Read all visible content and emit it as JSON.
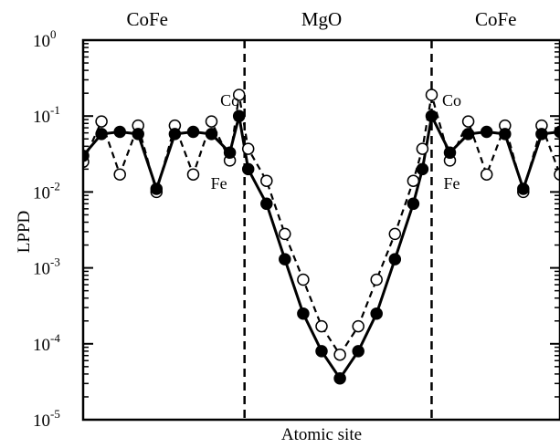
{
  "chart_data": {
    "type": "line",
    "title": "",
    "xlabel": "Atomic site",
    "ylabel": "LPPD",
    "y_scale": "log",
    "ylim": [
      1e-05,
      1
    ],
    "xlim": [
      0,
      26
    ],
    "grid": false,
    "y_ticks": [
      {
        "value": 1,
        "base": "10",
        "exp": "0"
      },
      {
        "value": 0.1,
        "base": "10",
        "exp": "-1"
      },
      {
        "value": 0.01,
        "base": "10",
        "exp": "-2"
      },
      {
        "value": 0.001,
        "base": "10",
        "exp": "-3"
      },
      {
        "value": 0.0001,
        "base": "10",
        "exp": "-4"
      },
      {
        "value": 1e-05,
        "base": "10",
        "exp": "-5"
      }
    ],
    "regions": [
      {
        "label": "CoFe",
        "x": 3.5
      },
      {
        "label": "MgO",
        "x": 13
      },
      {
        "label": "CoFe",
        "x": 22.5
      }
    ],
    "interfaces": [
      8.8,
      19.0
    ],
    "annotations": [
      {
        "text": "Co",
        "x": 8.0,
        "y": 0.16
      },
      {
        "text": "Fe",
        "x": 7.4,
        "y": 0.013
      },
      {
        "text": "Co",
        "x": 20.1,
        "y": 0.16
      },
      {
        "text": "Fe",
        "x": 20.1,
        "y": 0.013
      }
    ],
    "series": [
      {
        "style": "solid",
        "marker": "filled-circle",
        "x": [
          0,
          1,
          2,
          3,
          4,
          5,
          6,
          7,
          8,
          8.5,
          9,
          10,
          11,
          12,
          13,
          14,
          15,
          16,
          17,
          18,
          18.5,
          19,
          20,
          21,
          22,
          23,
          24,
          25,
          26
        ],
        "y": [
          0.03,
          0.058,
          0.062,
          0.058,
          0.011,
          0.058,
          0.062,
          0.058,
          0.033,
          0.1,
          0.02,
          0.007,
          0.0013,
          0.00025,
          8e-05,
          3.5e-05,
          8e-05,
          0.00025,
          0.0013,
          0.007,
          0.02,
          0.1,
          0.033,
          0.058,
          0.062,
          0.058,
          0.011,
          0.058,
          0.062
        ]
      },
      {
        "style": "dashed",
        "marker": "open-circle",
        "x": [
          0,
          1,
          2,
          3,
          4,
          5,
          6,
          7,
          8,
          8.5,
          9,
          10,
          11,
          12,
          13,
          14,
          15,
          16,
          17,
          18,
          18.5,
          19,
          20,
          21,
          22,
          23,
          24,
          25,
          26
        ],
        "y": [
          0.025,
          0.085,
          0.017,
          0.075,
          0.01,
          0.075,
          0.017,
          0.085,
          0.026,
          0.19,
          0.037,
          0.014,
          0.0028,
          0.0007,
          0.00017,
          7.2e-05,
          0.00017,
          0.0007,
          0.0028,
          0.014,
          0.037,
          0.19,
          0.026,
          0.085,
          0.017,
          0.075,
          0.01,
          0.075,
          0.017
        ]
      }
    ]
  }
}
